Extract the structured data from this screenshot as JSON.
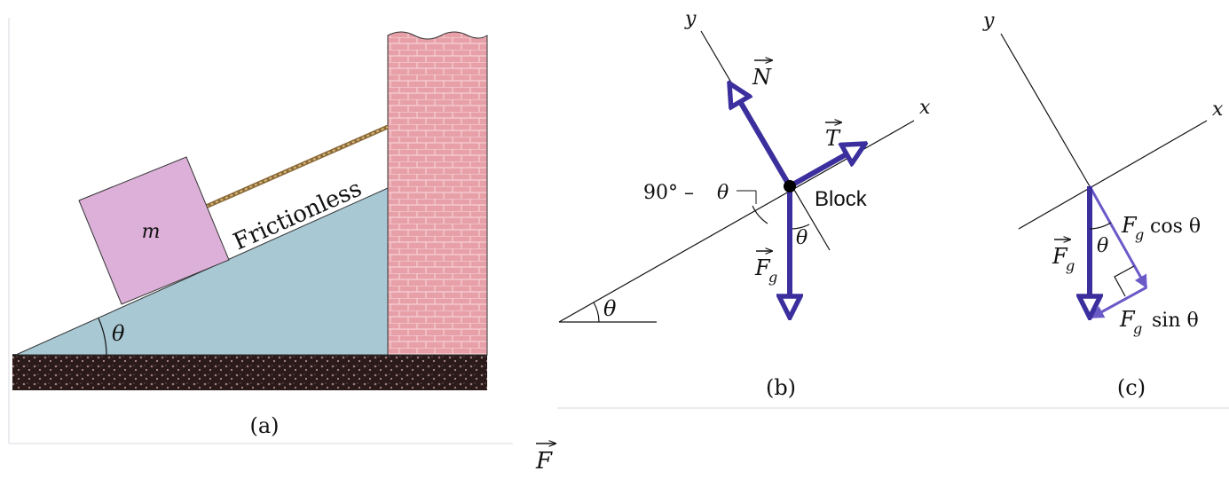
{
  "panel_a": {
    "caption": "(a)",
    "mass_label": "m",
    "surface_label": "Frictionless",
    "angle_label": "θ",
    "colors": {
      "incline": "#a8c8d4",
      "block": "#dcb0d8",
      "wall": "#e8a0a8",
      "ground": "#2a1a1a",
      "rope": "#8b6b3a"
    }
  },
  "panel_b": {
    "caption": "(b)",
    "axis_x": "x",
    "axis_y": "y",
    "normal_label": "N",
    "tension_label": "T",
    "gravity_label": "F",
    "gravity_sub": "g",
    "block_label": "Block",
    "complement_angle": "90° –",
    "complement_theta": "θ",
    "angle_theta": "θ",
    "incline_theta": "θ",
    "vector_color": "#3b2f9e"
  },
  "panel_c": {
    "caption": "(c)",
    "axis_x": "x",
    "axis_y": "y",
    "gravity_label": "F",
    "gravity_sub": "g",
    "angle_theta": "θ",
    "cos_label_main": "F",
    "cos_label_sub": "g",
    "cos_label_rest": "cos θ",
    "sin_label_main": "F",
    "sin_label_sub": "g",
    "sin_label_rest": "sin θ",
    "component_color": "#6a5ac8"
  },
  "stray_label": "F"
}
